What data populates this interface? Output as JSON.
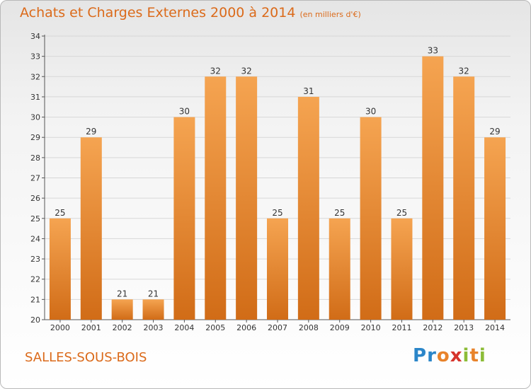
{
  "header": {
    "title": "Achats et Charges Externes 2000 à 2014",
    "subtitle": "(en milliers d'€)"
  },
  "footer": {
    "location": "SALLES-SOUS-BOIS",
    "brand_letters": [
      "P",
      "r",
      "o",
      "x",
      "i",
      "t",
      "i"
    ],
    "brand_colors": [
      "#2b86c9",
      "#2b86c9",
      "#e8832b",
      "#d6342c",
      "#8cbc37",
      "#e8832b",
      "#8cbc37"
    ]
  },
  "colors": {
    "bar_top": "#f5a451",
    "bar_bottom": "#d16c17",
    "grid": "#d7d7d7",
    "accent": "#db6a1a"
  },
  "chart_data": {
    "type": "bar",
    "title": "Achats et Charges Externes 2000 à 2014",
    "subtitle": "(en milliers d'€)",
    "categories": [
      "2000",
      "2001",
      "2002",
      "2003",
      "2004",
      "2005",
      "2006",
      "2007",
      "2008",
      "2009",
      "2010",
      "2011",
      "2012",
      "2013",
      "2014"
    ],
    "values": [
      25,
      29,
      21,
      21,
      30,
      32,
      32,
      25,
      31,
      25,
      30,
      25,
      33,
      32,
      29
    ],
    "ylim": [
      20,
      34
    ],
    "yticks": [
      20,
      21,
      22,
      23,
      24,
      25,
      26,
      27,
      28,
      29,
      30,
      31,
      32,
      33,
      34
    ],
    "grid": true,
    "data_labels": true
  }
}
